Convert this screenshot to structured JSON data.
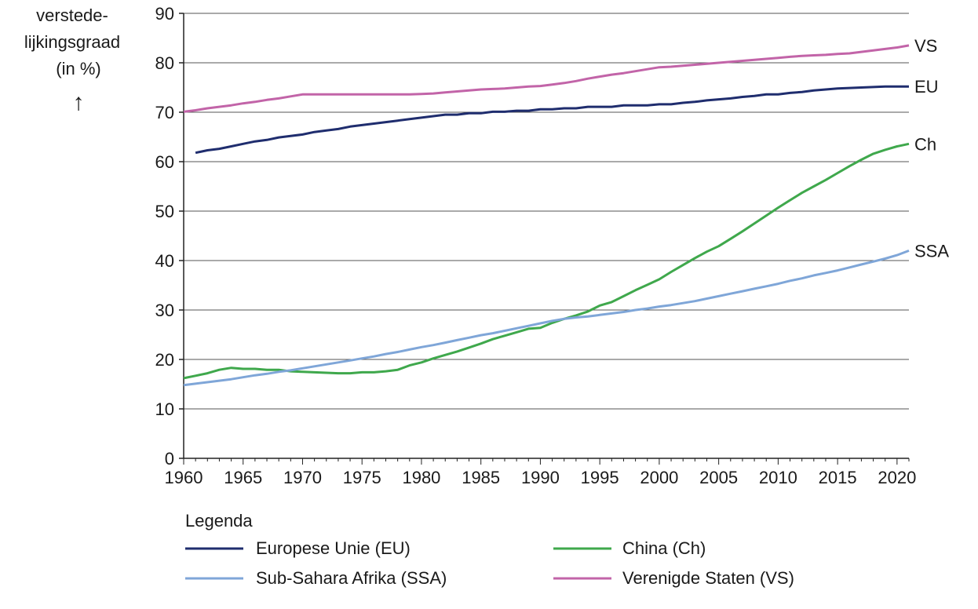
{
  "chart_data": {
    "type": "line",
    "ylabel_lines": [
      "verstede-",
      "lijkingsgraad",
      "(in %)"
    ],
    "ylabel_arrow": "↑",
    "ylim": [
      0,
      90
    ],
    "yticks": [
      0,
      10,
      20,
      30,
      40,
      50,
      60,
      70,
      80,
      90
    ],
    "xlim": [
      1960,
      2021
    ],
    "xticks": [
      1960,
      1965,
      1970,
      1975,
      1980,
      1985,
      1990,
      1995,
      2000,
      2005,
      2010,
      2015,
      2020
    ],
    "grid": "horizontal",
    "legend_title": "Legenda",
    "series": [
      {
        "key": "eu",
        "name": "Europese Unie (EU)",
        "end_label": "EU",
        "color": "#1f2d6e",
        "x": [
          1961,
          1962,
          1963,
          1964,
          1965,
          1966,
          1967,
          1968,
          1969,
          1970,
          1971,
          1972,
          1973,
          1974,
          1975,
          1976,
          1977,
          1978,
          1979,
          1980,
          1981,
          1982,
          1983,
          1984,
          1985,
          1986,
          1987,
          1988,
          1989,
          1990,
          1991,
          1992,
          1993,
          1994,
          1995,
          1996,
          1997,
          1998,
          1999,
          2000,
          2001,
          2002,
          2003,
          2004,
          2005,
          2006,
          2007,
          2008,
          2009,
          2010,
          2011,
          2012,
          2013,
          2014,
          2015,
          2016,
          2017,
          2018,
          2019,
          2020,
          2021
        ],
        "values": [
          61.8,
          62.3,
          62.6,
          63.1,
          63.6,
          64.1,
          64.4,
          64.9,
          65.2,
          65.5,
          66.0,
          66.3,
          66.6,
          67.1,
          67.4,
          67.7,
          68.0,
          68.3,
          68.6,
          68.9,
          69.2,
          69.5,
          69.5,
          69.8,
          69.8,
          70.1,
          70.1,
          70.3,
          70.3,
          70.6,
          70.6,
          70.8,
          70.8,
          71.1,
          71.1,
          71.1,
          71.4,
          71.4,
          71.4,
          71.6,
          71.6,
          71.9,
          72.1,
          72.4,
          72.6,
          72.8,
          73.1,
          73.3,
          73.6,
          73.6,
          73.9,
          74.1,
          74.4,
          74.6,
          74.8,
          74.9,
          75.0,
          75.1,
          75.2,
          75.2,
          75.2
        ]
      },
      {
        "key": "ch",
        "name": "China (Ch)",
        "end_label": "Ch",
        "color": "#3fa84c",
        "x": [
          1960,
          1961,
          1962,
          1963,
          1964,
          1965,
          1966,
          1967,
          1968,
          1969,
          1970,
          1971,
          1972,
          1973,
          1974,
          1975,
          1976,
          1977,
          1978,
          1979,
          1980,
          1981,
          1982,
          1983,
          1984,
          1985,
          1986,
          1987,
          1988,
          1989,
          1990,
          1991,
          1992,
          1993,
          1994,
          1995,
          1996,
          1997,
          1998,
          1999,
          2000,
          2001,
          2002,
          2003,
          2004,
          2005,
          2006,
          2007,
          2008,
          2009,
          2010,
          2011,
          2012,
          2013,
          2014,
          2015,
          2016,
          2017,
          2018,
          2019,
          2020,
          2021
        ],
        "values": [
          16.2,
          16.7,
          17.2,
          17.9,
          18.3,
          18.1,
          18.1,
          17.9,
          17.9,
          17.6,
          17.5,
          17.4,
          17.3,
          17.2,
          17.2,
          17.4,
          17.4,
          17.6,
          17.9,
          18.8,
          19.4,
          20.2,
          20.9,
          21.6,
          22.4,
          23.2,
          24.1,
          24.8,
          25.5,
          26.2,
          26.4,
          27.4,
          28.2,
          28.9,
          29.7,
          30.9,
          31.6,
          32.8,
          34.0,
          35.1,
          36.2,
          37.7,
          39.1,
          40.5,
          41.8,
          42.9,
          44.4,
          45.9,
          47.5,
          49.1,
          50.7,
          52.2,
          53.7,
          55.0,
          56.3,
          57.7,
          59.1,
          60.4,
          61.6,
          62.4,
          63.1,
          63.6
        ]
      },
      {
        "key": "ssa",
        "name": "Sub-Sahara Afrika (SSA)",
        "end_label": "SSA",
        "color": "#7fa6d8",
        "x": [
          1960,
          1961,
          1962,
          1963,
          1964,
          1965,
          1966,
          1967,
          1968,
          1969,
          1970,
          1971,
          1972,
          1973,
          1974,
          1975,
          1976,
          1977,
          1978,
          1979,
          1980,
          1981,
          1982,
          1983,
          1984,
          1985,
          1986,
          1987,
          1988,
          1989,
          1990,
          1991,
          1992,
          1993,
          1994,
          1995,
          1996,
          1997,
          1998,
          1999,
          2000,
          2001,
          2002,
          2003,
          2004,
          2005,
          2006,
          2007,
          2008,
          2009,
          2010,
          2011,
          2012,
          2013,
          2014,
          2015,
          2016,
          2017,
          2018,
          2019,
          2020,
          2021
        ],
        "values": [
          14.8,
          15.1,
          15.4,
          15.7,
          16.0,
          16.4,
          16.8,
          17.1,
          17.5,
          17.8,
          18.2,
          18.6,
          19.0,
          19.4,
          19.8,
          20.2,
          20.6,
          21.1,
          21.5,
          22.0,
          22.5,
          22.9,
          23.4,
          23.9,
          24.4,
          24.9,
          25.3,
          25.8,
          26.3,
          26.8,
          27.3,
          27.8,
          28.2,
          28.5,
          28.7,
          29.0,
          29.3,
          29.6,
          30.0,
          30.3,
          30.7,
          31.0,
          31.4,
          31.8,
          32.3,
          32.8,
          33.3,
          33.8,
          34.3,
          34.8,
          35.3,
          35.9,
          36.4,
          37.0,
          37.5,
          38.0,
          38.6,
          39.2,
          39.8,
          40.4,
          41.1,
          42.0
        ]
      },
      {
        "key": "vs",
        "name": "Verenigde Staten (VS)",
        "end_label": "VS",
        "color": "#c264a8",
        "x": [
          1960,
          1961,
          1962,
          1963,
          1964,
          1965,
          1966,
          1967,
          1968,
          1969,
          1970,
          1971,
          1972,
          1973,
          1974,
          1975,
          1976,
          1977,
          1978,
          1979,
          1980,
          1981,
          1982,
          1983,
          1984,
          1985,
          1986,
          1987,
          1988,
          1989,
          1990,
          1991,
          1992,
          1993,
          1994,
          1995,
          1996,
          1997,
          1998,
          1999,
          2000,
          2001,
          2002,
          2003,
          2004,
          2005,
          2006,
          2007,
          2008,
          2009,
          2010,
          2011,
          2012,
          2013,
          2014,
          2015,
          2016,
          2017,
          2018,
          2019,
          2020,
          2021
        ],
        "values": [
          70.1,
          70.4,
          70.8,
          71.1,
          71.4,
          71.8,
          72.1,
          72.5,
          72.8,
          73.2,
          73.6,
          73.6,
          73.6,
          73.6,
          73.6,
          73.6,
          73.6,
          73.6,
          73.6,
          73.6,
          73.7,
          73.8,
          74.0,
          74.2,
          74.4,
          74.6,
          74.7,
          74.8,
          75.0,
          75.2,
          75.3,
          75.6,
          75.9,
          76.3,
          76.8,
          77.2,
          77.6,
          77.9,
          78.3,
          78.7,
          79.1,
          79.2,
          79.4,
          79.6,
          79.8,
          80.0,
          80.2,
          80.4,
          80.6,
          80.8,
          81.0,
          81.2,
          81.4,
          81.5,
          81.6,
          81.8,
          81.9,
          82.2,
          82.5,
          82.8,
          83.1,
          83.5
        ]
      }
    ],
    "legend_order": [
      "eu",
      "ch",
      "ssa",
      "vs"
    ]
  }
}
